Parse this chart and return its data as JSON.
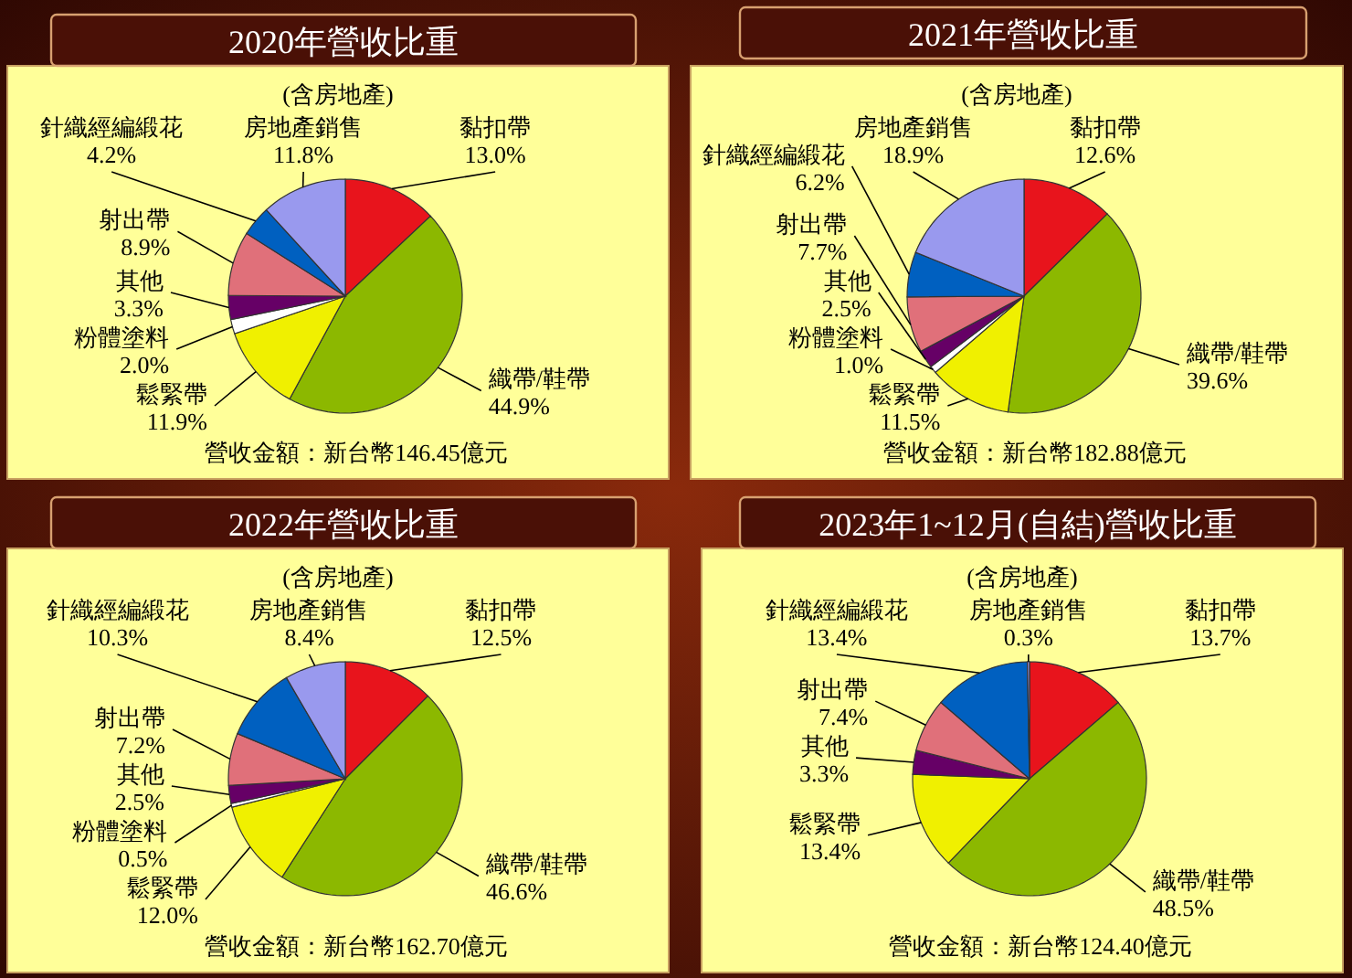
{
  "chart_data": [
    {
      "type": "pie",
      "title": "2020年營收比重",
      "subtitle": "(含房地產)",
      "annotations": [
        "營收金額：新台幣146.45億元"
      ],
      "categories": [
        "黏扣帶",
        "織帶/鞋帶",
        "鬆緊帶",
        "粉體塗料",
        "其他",
        "射出帶",
        "針織經編緞花",
        "房地產銷售"
      ],
      "values": [
        13.0,
        44.9,
        11.9,
        2.0,
        3.3,
        8.9,
        4.2,
        11.8
      ],
      "value_labels": [
        "13.0%",
        "44.9%",
        "11.9%",
        "2.0%",
        "3.3%",
        "8.9%",
        "4.2%",
        "11.8%"
      ],
      "colors": [
        "#e8141c",
        "#8cb800",
        "#f0f000",
        "#ffffff",
        "#660066",
        "#e0707a",
        "#0060c0",
        "#9999ee"
      ],
      "data_labels": true
    },
    {
      "type": "pie",
      "title": "2021年營收比重",
      "subtitle": "(含房地產)",
      "annotations": [
        "營收金額：新台幣182.88億元"
      ],
      "categories": [
        "黏扣帶",
        "織帶/鞋帶",
        "鬆緊帶",
        "粉體塗料",
        "其他",
        "射出帶",
        "針織經編緞花",
        "房地產銷售"
      ],
      "values": [
        12.6,
        39.6,
        11.5,
        1.0,
        2.5,
        7.7,
        6.2,
        18.9
      ],
      "value_labels": [
        "12.6%",
        "39.6%",
        "11.5%",
        "1.0%",
        "2.5%",
        "7.7%",
        "6.2%",
        "18.9%"
      ],
      "colors": [
        "#e8141c",
        "#8cb800",
        "#f0f000",
        "#ffffff",
        "#660066",
        "#e0707a",
        "#0060c0",
        "#9999ee"
      ],
      "data_labels": true
    },
    {
      "type": "pie",
      "title": "2022年營收比重",
      "subtitle": "(含房地產)",
      "annotations": [
        "營收金額：新台幣162.70億元"
      ],
      "categories": [
        "黏扣帶",
        "織帶/鞋帶",
        "鬆緊帶",
        "粉體塗料",
        "其他",
        "射出帶",
        "針織經編緞花",
        "房地產銷售"
      ],
      "values": [
        12.5,
        46.6,
        12.0,
        0.5,
        2.5,
        7.2,
        10.3,
        8.4
      ],
      "value_labels": [
        "12.5%",
        "46.6%",
        "12.0%",
        "0.5%",
        "2.5%",
        "7.2%",
        "10.3%",
        "8.4%"
      ],
      "colors": [
        "#e8141c",
        "#8cb800",
        "#f0f000",
        "#ffffff",
        "#660066",
        "#e0707a",
        "#0060c0",
        "#9999ee"
      ],
      "data_labels": true
    },
    {
      "type": "pie",
      "title": "2023年1~12月(自結)營收比重",
      "subtitle": "(含房地產)",
      "annotations": [
        "營收金額：新台幣124.40億元"
      ],
      "categories": [
        "黏扣帶",
        "織帶/鞋帶",
        "鬆緊帶",
        "其他",
        "射出帶",
        "針織經編緞花",
        "房地產銷售"
      ],
      "values": [
        13.7,
        48.5,
        13.4,
        3.3,
        7.4,
        13.4,
        0.3
      ],
      "value_labels": [
        "13.7%",
        "48.5%",
        "13.4%",
        "3.3%",
        "7.4%",
        "13.4%",
        "0.3%"
      ],
      "colors": [
        "#e8141c",
        "#8cb800",
        "#f0f000",
        "#660066",
        "#e0707a",
        "#0060c0",
        "#9999ee"
      ],
      "data_labels": true
    }
  ]
}
